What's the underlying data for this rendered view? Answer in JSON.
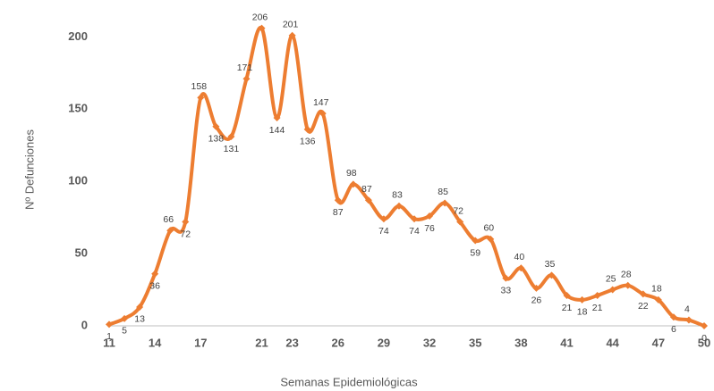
{
  "chart_data": {
    "type": "line",
    "x_label": "Semanas Epidemiológicas",
    "y_label": "Nº Defunciones",
    "x": [
      11,
      12,
      13,
      14,
      15,
      16,
      17,
      18,
      19,
      20,
      21,
      22,
      23,
      24,
      25,
      26,
      27,
      28,
      29,
      30,
      31,
      32,
      33,
      34,
      35,
      36,
      37,
      38,
      39,
      40,
      41,
      42,
      43,
      44,
      45,
      46,
      47,
      48,
      49,
      50
    ],
    "series": [
      {
        "name": "Nº Defunciones",
        "color": "#ED7D31",
        "values": [
          1,
          5,
          13,
          36,
          66,
          72,
          158,
          138,
          131,
          171,
          206,
          144,
          201,
          136,
          147,
          87,
          98,
          87,
          74,
          83,
          74,
          76,
          85,
          72,
          59,
          60,
          33,
          40,
          26,
          35,
          21,
          18,
          21,
          25,
          28,
          22,
          18,
          6,
          4,
          0
        ]
      }
    ],
    "xlim": [
      11,
      50
    ],
    "xticks": [
      11,
      14,
      17,
      21,
      23,
      26,
      29,
      32,
      35,
      38,
      41,
      44,
      47,
      50
    ],
    "ylim": [
      0,
      220
    ],
    "yticks": [
      0,
      50,
      100,
      150,
      200
    ],
    "grid": false
  }
}
